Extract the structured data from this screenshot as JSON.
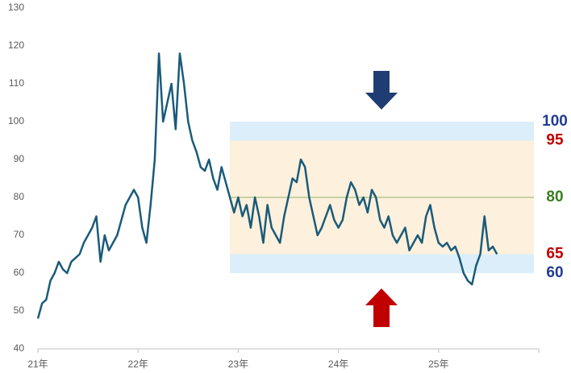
{
  "chart_data": {
    "type": "line",
    "color": "#1a5b7a",
    "ylim": [
      40,
      130
    ],
    "yticks": [
      40,
      50,
      60,
      70,
      80,
      90,
      100,
      110,
      120,
      130
    ],
    "categories": [
      "21年",
      null,
      null,
      null,
      null,
      null,
      null,
      null,
      null,
      null,
      null,
      null,
      null,
      null,
      null,
      null,
      null,
      null,
      null,
      null,
      null,
      null,
      null,
      null,
      "22年",
      null,
      null,
      null,
      null,
      null,
      null,
      null,
      null,
      null,
      null,
      null,
      null,
      null,
      null,
      null,
      null,
      null,
      null,
      null,
      null,
      null,
      null,
      null,
      "23年",
      null,
      null,
      null,
      null,
      null,
      null,
      null,
      null,
      null,
      null,
      null,
      null,
      null,
      null,
      null,
      null,
      null,
      null,
      null,
      null,
      null,
      null,
      null,
      "24年",
      null,
      null,
      null,
      null,
      null,
      null,
      null,
      null,
      null,
      null,
      null,
      null,
      null,
      null,
      null,
      null,
      null,
      null,
      null,
      null,
      null,
      null,
      null,
      "25年",
      null,
      null,
      null,
      null,
      null,
      null,
      null,
      null,
      null,
      null,
      null,
      null,
      null,
      null,
      null,
      null,
      null,
      null,
      null,
      null,
      null,
      null,
      null
    ],
    "values": [
      48,
      52,
      53,
      58,
      60,
      63,
      61,
      60,
      63,
      64,
      65,
      68,
      70,
      72,
      75,
      63,
      70,
      66,
      68,
      70,
      74,
      78,
      80,
      82,
      80,
      72,
      68,
      78,
      90,
      118,
      100,
      105,
      110,
      98,
      118,
      110,
      100,
      95,
      92,
      88,
      87,
      90,
      85,
      82,
      88,
      84,
      80,
      76,
      80,
      75,
      78,
      72,
      80,
      75,
      68,
      78,
      72,
      70,
      68,
      75,
      80,
      85,
      84,
      90,
      88,
      80,
      75,
      70,
      72,
      75,
      78,
      74,
      72,
      74,
      80,
      84,
      82,
      78,
      80,
      76,
      82,
      80,
      74,
      72,
      75,
      70,
      68,
      70,
      72,
      66,
      68,
      70,
      68,
      75,
      78,
      72,
      68,
      67,
      68,
      66,
      67,
      64,
      60,
      58,
      57,
      62,
      65,
      75,
      66,
      67,
      65,
      null,
      null,
      null,
      null,
      null,
      null,
      null,
      null,
      null
    ],
    "bands": [
      {
        "from": 60,
        "to": 65,
        "color": "#dbeefa"
      },
      {
        "from": 65,
        "to": 95,
        "color": "#fdf0dc"
      },
      {
        "from": 95,
        "to": 100,
        "color": "#dbeefa"
      }
    ],
    "levels": [
      {
        "value": 100,
        "color": "#1f3c8f"
      },
      {
        "value": 95,
        "color": "#c00000"
      },
      {
        "value": 80,
        "color": "#3a7d22"
      },
      {
        "value": 65,
        "color": "#c00000"
      },
      {
        "value": 60,
        "color": "#1f3c8f"
      }
    ]
  }
}
